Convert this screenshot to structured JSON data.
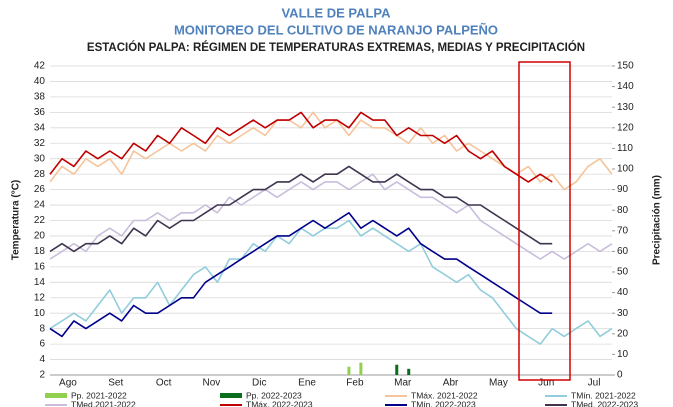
{
  "chart_data": {
    "type": "line",
    "title": "VALLE DE PALPA",
    "subtitle": "MONITOREO DEL CULTIVO DE NARANJO PALPEÑO",
    "chart_title": "ESTACIÓN PALPA: RÉGIMEN DE TEMPERATURAS EXTREMAS, MEDIAS Y PRECIPITACIÓN",
    "y_label": "Temperatura (°C)",
    "y2_label": "Precipitación (mm)",
    "categories": [
      null,
      "Ago",
      null,
      null,
      null,
      "Set",
      null,
      null,
      null,
      "Oct",
      null,
      null,
      null,
      "Nov",
      null,
      null,
      null,
      "Dic",
      null,
      null,
      null,
      "Ene",
      null,
      null,
      null,
      "Feb",
      null,
      null,
      null,
      "Mar",
      null,
      null,
      null,
      "Abr",
      null,
      null,
      null,
      "May",
      null,
      null,
      null,
      "Jun",
      null,
      null,
      null,
      "Jul",
      null,
      null
    ],
    "ylim": [
      2,
      42
    ],
    "yticks": [
      2,
      4,
      6,
      8,
      10,
      12,
      14,
      16,
      18,
      20,
      22,
      24,
      26,
      28,
      30,
      32,
      34,
      36,
      38,
      40,
      42
    ],
    "y2lim": [
      0,
      150
    ],
    "y2ticks": [
      0,
      10,
      20,
      30,
      40,
      50,
      60,
      70,
      80,
      90,
      100,
      110,
      120,
      130,
      140,
      150
    ],
    "grid": true,
    "series": [
      {
        "name": "Pp. 2021-2022",
        "color": "#92d050",
        "kind": "bar",
        "axis": "y2",
        "values": [
          0,
          0,
          0,
          0,
          0,
          0,
          0,
          0,
          0,
          0,
          0,
          0,
          0,
          0,
          0,
          0,
          0,
          0,
          0,
          0,
          0,
          0,
          0,
          0,
          0,
          4,
          6,
          0,
          0,
          0,
          0,
          0,
          0,
          0,
          0,
          0,
          0,
          0,
          0,
          0,
          0,
          0,
          0,
          0,
          0,
          0,
          0,
          0
        ]
      },
      {
        "name": "Pp. 2022-2023",
        "color": "#0a6e1e",
        "kind": "bar",
        "axis": "y2",
        "values": [
          0,
          0,
          0,
          0,
          0,
          0,
          0,
          0,
          0,
          0,
          0,
          0,
          0,
          0,
          0,
          0,
          0,
          0,
          0,
          0,
          0,
          0,
          0,
          0,
          0,
          0,
          0,
          0,
          0,
          5,
          3,
          0,
          0,
          0,
          0,
          0,
          0,
          0,
          0,
          0,
          0,
          0,
          0,
          null,
          null,
          null,
          null,
          null
        ]
      },
      {
        "name": "TMáx. 2021-2022",
        "color": "#f6c49a",
        "values": [
          27,
          29,
          28,
          30,
          29,
          30,
          28,
          31,
          30,
          31,
          32,
          31,
          32,
          31,
          33,
          32,
          33,
          34,
          33,
          35,
          35,
          34,
          36,
          34,
          35,
          33,
          35,
          34,
          34,
          33,
          32,
          34,
          32,
          33,
          31,
          32,
          31,
          30,
          29,
          28,
          29,
          27,
          28,
          26,
          27,
          29,
          30,
          28
        ]
      },
      {
        "name": "TMín. 2021-2022",
        "color": "#92cddc",
        "values": [
          8,
          9,
          10,
          9,
          11,
          13,
          10,
          12,
          12,
          14,
          11,
          13,
          15,
          16,
          14,
          17,
          17,
          19,
          18,
          20,
          19,
          21,
          20,
          21,
          21,
          22,
          20,
          21,
          20,
          19,
          18,
          19,
          16,
          15,
          14,
          15,
          13,
          12,
          10,
          8,
          7,
          6,
          8,
          7,
          8,
          9,
          7,
          8
        ]
      },
      {
        "name": "TMed.2021-2022",
        "color": "#c9bedb",
        "values": [
          17,
          18,
          19,
          18,
          20,
          21,
          20,
          22,
          22,
          23,
          22,
          23,
          23,
          24,
          23,
          25,
          24,
          25,
          26,
          25,
          26,
          27,
          26,
          27,
          27,
          26,
          27,
          28,
          26,
          27,
          26,
          25,
          25,
          24,
          23,
          24,
          22,
          21,
          20,
          19,
          18,
          17,
          18,
          17,
          18,
          19,
          18,
          19
        ]
      },
      {
        "name": "TMáx. 2022-2023",
        "color": "#c00000",
        "values": [
          28,
          30,
          29,
          31,
          30,
          31,
          30,
          32,
          31,
          33,
          32,
          34,
          33,
          32,
          34,
          33,
          34,
          35,
          34,
          35,
          35,
          36,
          34,
          35,
          35,
          34,
          36,
          35,
          35,
          33,
          34,
          33,
          33,
          32,
          33,
          31,
          30,
          31,
          29,
          28,
          27,
          28,
          27,
          null,
          null,
          null,
          null,
          null
        ]
      },
      {
        "name": "TMín. 2022-2023",
        "color": "#00008b",
        "values": [
          8,
          7,
          9,
          8,
          9,
          10,
          9,
          11,
          10,
          10,
          11,
          12,
          12,
          14,
          15,
          16,
          17,
          18,
          19,
          20,
          20,
          21,
          22,
          21,
          22,
          23,
          21,
          22,
          21,
          20,
          21,
          19,
          18,
          17,
          17,
          16,
          15,
          14,
          13,
          12,
          11,
          10,
          10,
          null,
          null,
          null,
          null,
          null
        ]
      },
      {
        "name": "TMed. 2022-2023",
        "color": "#3f3550",
        "values": [
          18,
          19,
          18,
          19,
          19,
          20,
          19,
          21,
          20,
          22,
          21,
          22,
          22,
          23,
          24,
          24,
          25,
          26,
          26,
          27,
          27,
          28,
          27,
          28,
          28,
          29,
          28,
          27,
          27,
          28,
          27,
          26,
          26,
          25,
          25,
          24,
          24,
          23,
          22,
          21,
          20,
          19,
          19,
          null,
          null,
          null,
          null,
          null
        ]
      }
    ]
  }
}
